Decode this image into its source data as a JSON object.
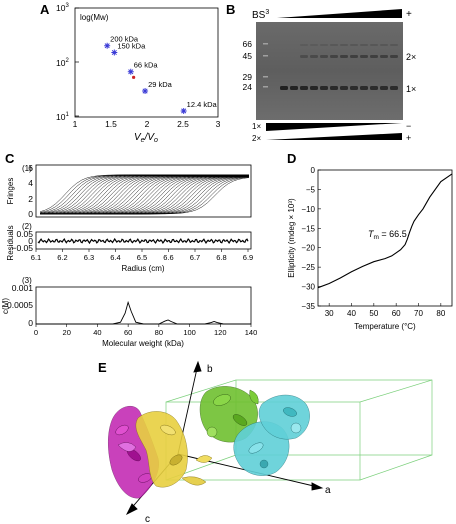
{
  "panels": {
    "A": "A",
    "B": "B",
    "C": "C",
    "D": "D",
    "E": "E"
  },
  "panel_a": {
    "ylabel": "log(Mw)",
    "xlabel_v_e": "V",
    "xlabel_sub_e": "e",
    "xlabel_sep": "/",
    "xlabel_v_o": "V",
    "xlabel_sub_o": "o",
    "yticks": [
      "10",
      "10",
      "10"
    ],
    "yexp": [
      "3",
      "2",
      "1"
    ],
    "xticks": [
      "1",
      "1.5",
      "2",
      "2.5",
      "3"
    ],
    "point_labels": [
      "200 kDa",
      "150 kDa",
      "66 kDa",
      "29 kDa",
      "12.4 kDa"
    ],
    "marker_color": "#3a3ad6",
    "sample_marker_color": "#cc2222"
  },
  "panel_b": {
    "reagent": "BS",
    "reagent_sup": "3",
    "plus": "+",
    "minus": "−",
    "ladder": [
      "66",
      "45",
      "29",
      "24"
    ],
    "band_labels": [
      "2×",
      "1×"
    ],
    "bottom_labels": [
      "1×",
      "2×"
    ],
    "bottom_signs": [
      "−",
      "+"
    ]
  },
  "panel_c": {
    "sub1": "(1)",
    "sub2": "(2)",
    "sub3": "(3)",
    "ylabel1": "Fringes",
    "ylabel2": "Residuals",
    "ylabel3": "c(M)",
    "xlabel2": "Radius (cm)",
    "xlabel3": "Molecular weight (kDa)",
    "yticks1": [
      "0",
      "2",
      "4",
      "6"
    ],
    "yticks2": [
      "0.05",
      "0",
      "−0.05"
    ],
    "yticks3": [
      "0",
      "0.0005",
      "0.001"
    ],
    "xticks2": [
      "6.1",
      "6.2",
      "6.3",
      "6.4",
      "6.5",
      "6.6",
      "6.7",
      "6.8",
      "6.9"
    ],
    "xticks3": [
      "0",
      "20",
      "40",
      "60",
      "80",
      "100",
      "120",
      "140"
    ]
  },
  "panel_d": {
    "ylabel": "Ellipticity (mdeg × 10³)",
    "xlabel": "Temperature (°C)",
    "tm_T": "T",
    "tm_sub": "m",
    "tm_val": " = 66.5",
    "yticks": [
      "0",
      "−5",
      "−10",
      "−15",
      "−20",
      "−25",
      "−30",
      "−35"
    ],
    "xticks": [
      "30",
      "40",
      "50",
      "60",
      "70",
      "80"
    ]
  },
  "panel_e": {
    "axis_a": "a",
    "axis_b": "b",
    "axis_c": "c",
    "colors": {
      "magenta": "#c020b0",
      "yellow": "#e8d040",
      "green": "#70c030",
      "cyan": "#60d0d8",
      "cell": "#7cd07c"
    }
  },
  "chart_data": [
    {
      "type": "scatter",
      "panel": "A",
      "xlabel": "Ve/Vo",
      "ylabel": "log(Mw)",
      "xlim": [
        1,
        3
      ],
      "ylim": [
        10,
        1000
      ],
      "yscale": "log",
      "grid": false,
      "x": [
        1.45,
        1.55,
        1.78,
        1.98,
        2.52
      ],
      "y": [
        200,
        150,
        66,
        29,
        12.4
      ],
      "labels": [
        "200 kDa",
        "150 kDa",
        "66 kDa",
        "29 kDa",
        "12.4 kDa"
      ],
      "sample_point": {
        "x": 1.82,
        "y": 52
      }
    },
    {
      "type": "line",
      "panel": "C(3)",
      "xlabel": "Molecular weight (kDa)",
      "ylabel": "c(M)",
      "xlim": [
        0,
        140
      ],
      "ylim": [
        0,
        0.001
      ],
      "x": [
        0,
        10,
        20,
        30,
        40,
        50,
        55,
        58,
        60,
        62,
        65,
        70,
        80,
        84,
        86,
        88,
        92,
        100,
        110,
        114,
        116,
        118,
        122,
        130,
        140
      ],
      "y": [
        0,
        0,
        0,
        0,
        0,
        0,
        5e-05,
        0.0003,
        0.0006,
        0.00035,
        5e-05,
        0,
        0,
        8e-05,
        0.00011,
        7e-05,
        0,
        0,
        0,
        4e-05,
        7e-05,
        4e-05,
        0,
        0,
        0
      ]
    },
    {
      "type": "line",
      "panel": "D",
      "xlabel": "Temperature (°C)",
      "ylabel": "Ellipticity (mdeg × 10³)",
      "xlim": [
        25,
        85
      ],
      "ylim": [
        -35,
        0
      ],
      "x": [
        25,
        30,
        35,
        40,
        45,
        50,
        55,
        58,
        60,
        62,
        64,
        65,
        66,
        67,
        68,
        70,
        72,
        75,
        80,
        85
      ],
      "y": [
        -30.3,
        -29.2,
        -27.8,
        -26.2,
        -24.8,
        -23.6,
        -22.8,
        -22.1,
        -21.3,
        -20.5,
        -19.2,
        -17.8,
        -16.0,
        -14.5,
        -13.2,
        -11.5,
        -10.0,
        -7.0,
        -3.0,
        -1.0
      ],
      "annotation": "Tm = 66.5"
    }
  ]
}
